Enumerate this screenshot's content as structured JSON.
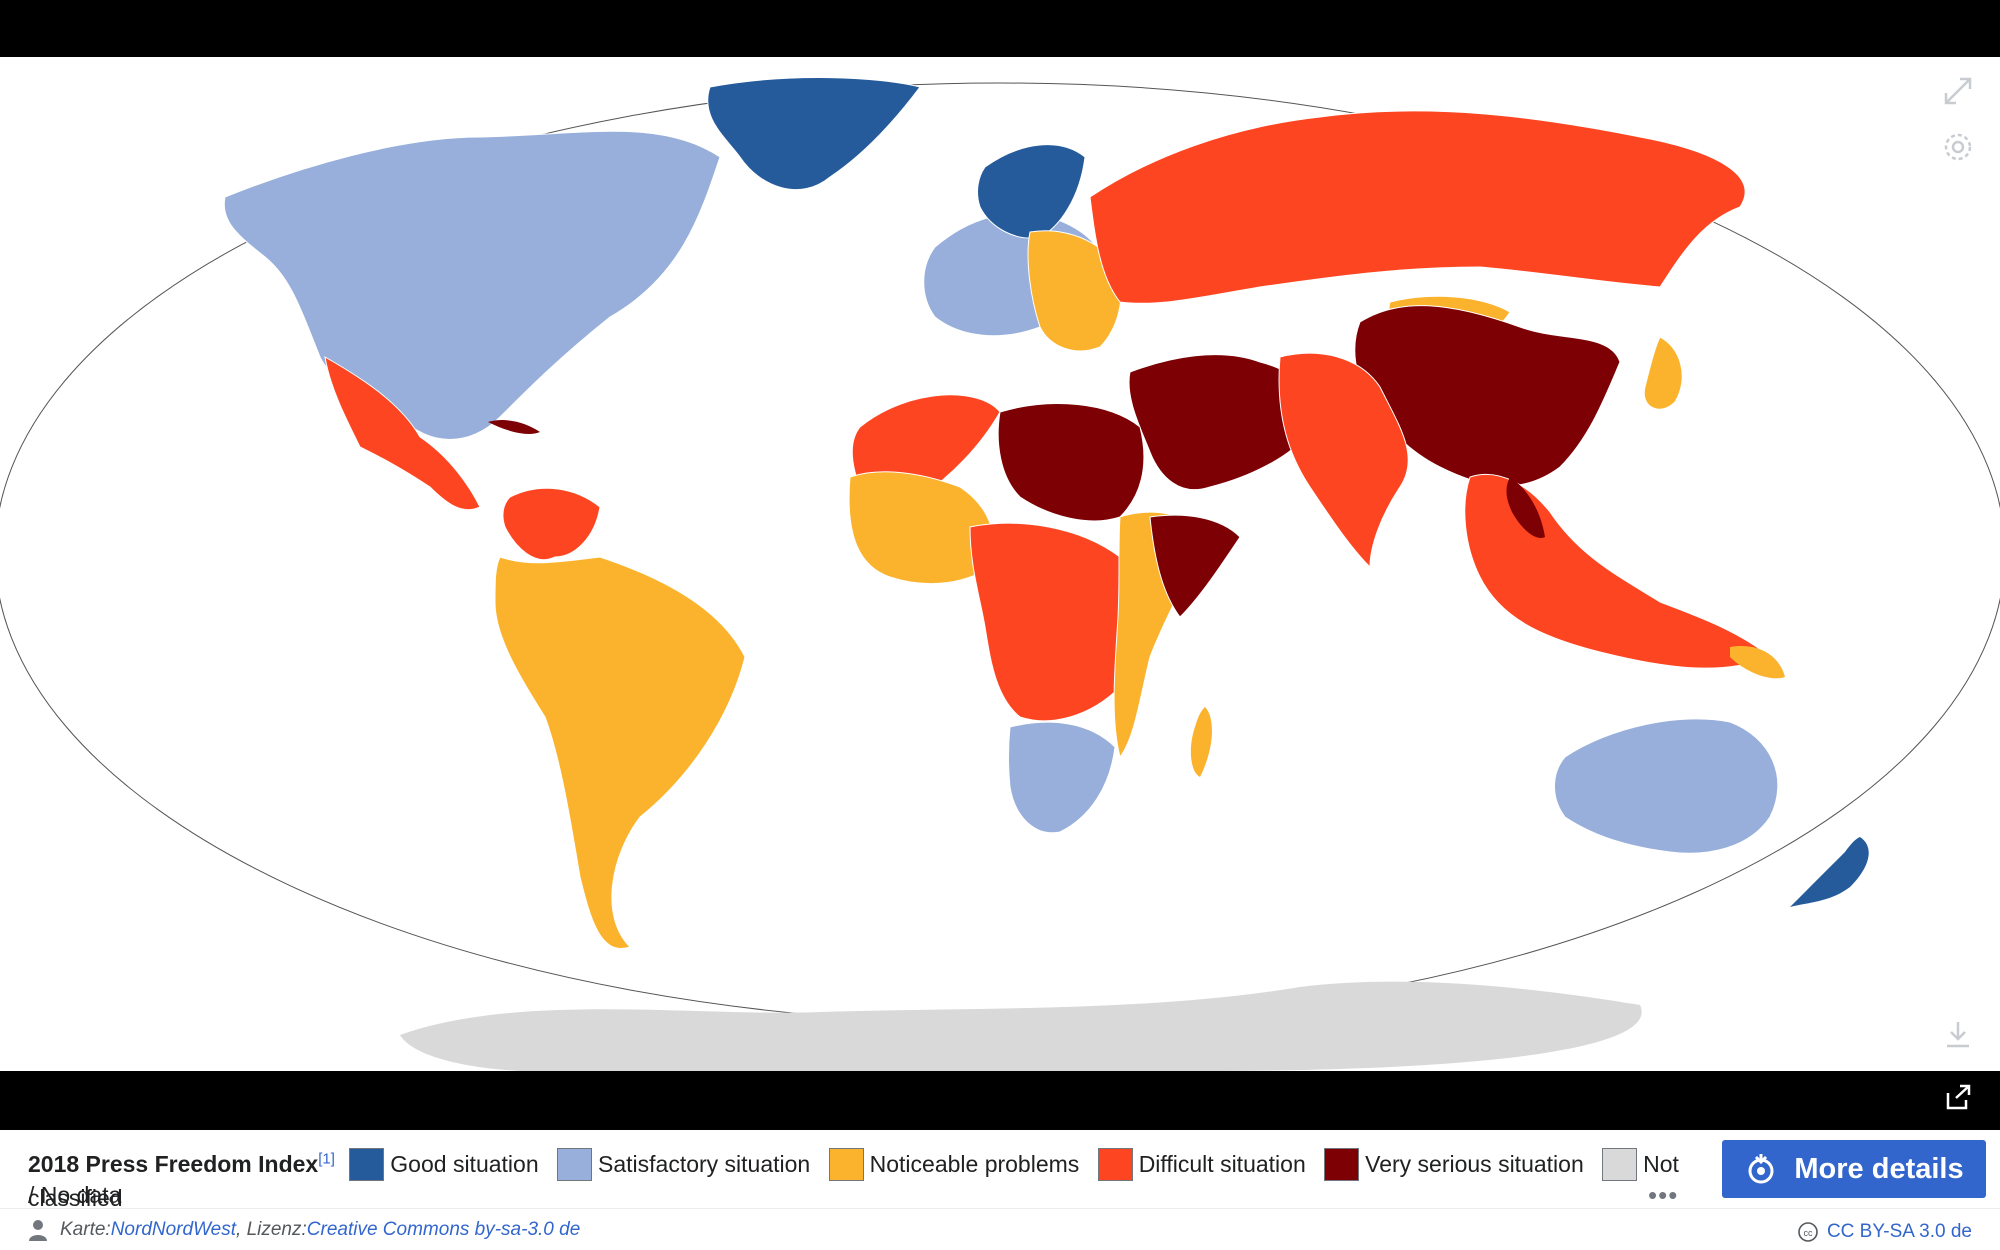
{
  "viewer": {
    "close_icon": "close-icon",
    "fullscreen_icon": "fullscreen-icon",
    "settings_icon": "gear-icon",
    "download_icon": "download-icon",
    "share_icon": "share-icon"
  },
  "caption": {
    "title": "2018 Press Freedom Index",
    "ref": "[1]",
    "legend": [
      {
        "label": "Good situation",
        "color": "#255b9b"
      },
      {
        "label": "Satisfactory situation",
        "color": "#97afda"
      },
      {
        "label": "Noticeable problems",
        "color": "#fbb32d"
      },
      {
        "label": "Difficult situation",
        "color": "#fd4521"
      },
      {
        "label": "Very serious situation",
        "color": "#7c0004"
      },
      {
        "label": "Not classified",
        "color": "#d9d9d9"
      }
    ],
    "nodata": "/ No data",
    "more_label": "More details",
    "ellipsis": "•••"
  },
  "attribution": {
    "prefix": "Karte: ",
    "author": "NordNordWest",
    "middle": ", Lizenz: ",
    "license_link": "Creative Commons by-sa-3.0 de",
    "license_short": "CC BY-SA 3.0 de"
  }
}
